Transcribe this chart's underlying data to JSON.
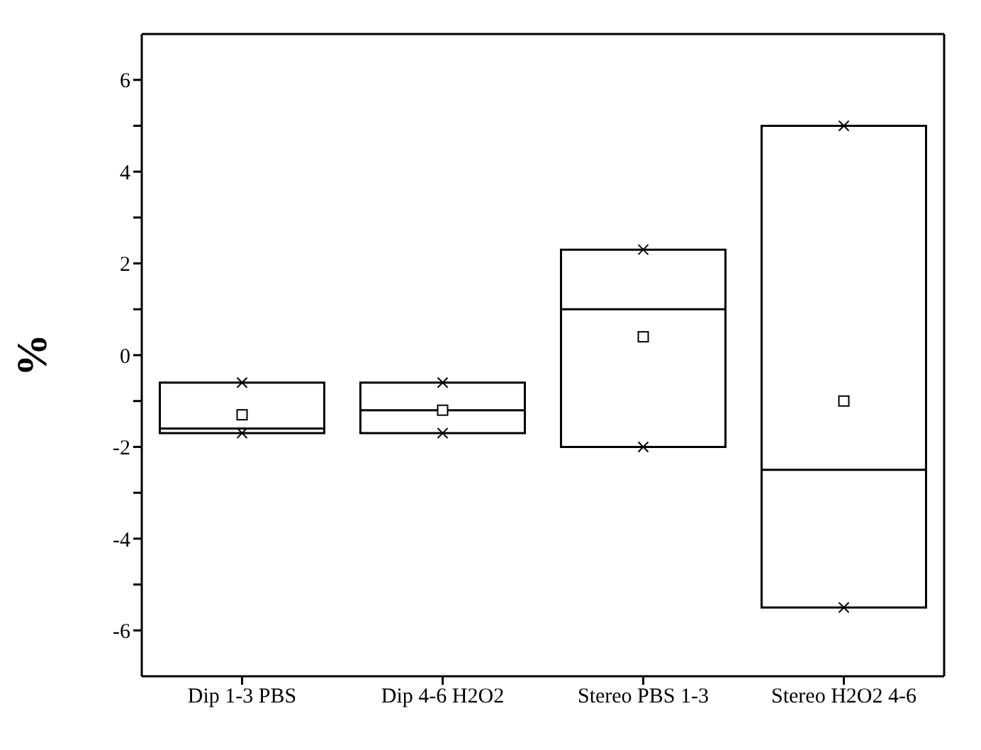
{
  "chart_data": {
    "type": "box",
    "ylabel": "%",
    "categories": [
      "Dip 1-3 PBS",
      "Dip 4-6 H2O2",
      "Stereo PBS 1-3",
      "Stereo H2O2 4-6"
    ],
    "boxes": [
      {
        "low": -1.7,
        "q1": -1.7,
        "median": -1.6,
        "q3": -0.6,
        "high": -0.6,
        "mean": -1.3
      },
      {
        "low": -1.7,
        "q1": -1.7,
        "median": -1.2,
        "q3": -0.6,
        "high": -0.6,
        "mean": -1.2
      },
      {
        "low": -2.0,
        "q1": -2.0,
        "median": 1.0,
        "q3": 2.3,
        "high": 2.3,
        "mean": 0.4
      },
      {
        "low": -5.5,
        "q1": -5.5,
        "median": -2.5,
        "q3": 5.0,
        "high": 5.0,
        "mean": -1.0
      }
    ],
    "color": "#000000",
    "ylim": [
      -7,
      7
    ],
    "series": [
      {
        "type": "scatter",
        "x": [
          "Dip 1-3 PBS",
          "Dip 4-6 H2O2",
          "Stereo PBS 1-3",
          "Stereo H2O2 4-6"
        ],
        "values": [
          -0.6,
          -0.6,
          2.3,
          5.0
        ],
        "color": "#000000"
      },
      {
        "type": "scatter",
        "x": [
          "Dip 1-3 PBS",
          "Dip 4-6 H2O2",
          "Stereo PBS 1-3",
          "Stereo H2O2 4-6"
        ],
        "values": [
          -1.7,
          -1.7,
          -2.0,
          -5.5
        ],
        "color": "#000000"
      }
    ],
    "yticks": [
      -6,
      {
        "value": -5,
        "label": null
      },
      -4,
      {
        "value": -3,
        "label": null
      },
      -2,
      {
        "value": -1,
        "label": null
      },
      0,
      {
        "value": 1,
        "label": null
      },
      2,
      {
        "value": 3,
        "label": null
      },
      4,
      {
        "value": 5,
        "label": null
      },
      6
    ],
    "grid": false,
    "legend": false,
    "marker": "cross"
  }
}
